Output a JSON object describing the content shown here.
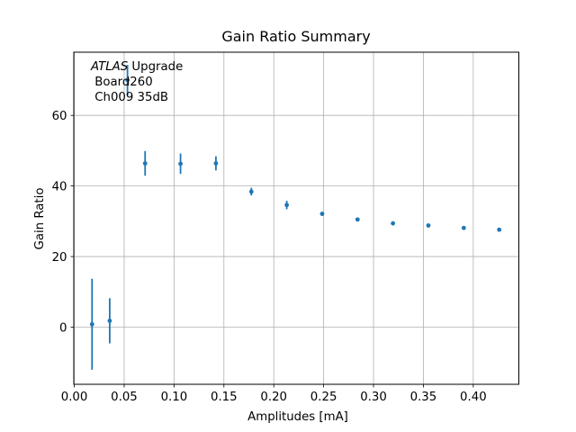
{
  "colors": {
    "marker": "#1f77b4",
    "grid": "#b0b0b0",
    "spine": "#000000",
    "text": "#000000",
    "background": "#ffffff"
  },
  "chart_data": {
    "type": "scatter",
    "title": "Gain Ratio Summary",
    "xlabel": "Amplitudes [mA]",
    "ylabel": "Gain Ratio",
    "grid": true,
    "legend": null,
    "annotation": {
      "italic": "ATLAS",
      "after_italic": " Upgrade",
      "line2": " Board260",
      "line3": " Ch009 35dB"
    },
    "xlim": [
      -0.0005,
      0.4457
    ],
    "ylim": [
      -16.2,
      77.9
    ],
    "xticks": {
      "values": [
        0.0,
        0.05,
        0.1,
        0.15,
        0.2,
        0.25,
        0.3,
        0.35,
        0.4
      ],
      "labels": [
        "0.00",
        "0.05",
        "0.10",
        "0.15",
        "0.20",
        "0.25",
        "0.30",
        "0.35",
        "0.40"
      ]
    },
    "yticks": {
      "values": [
        0,
        20,
        40,
        60
      ],
      "labels": [
        "0",
        "20",
        "40",
        "60"
      ]
    },
    "series": [
      {
        "name": "gain-ratio",
        "marker": "point",
        "error_bars": "y",
        "points": [
          {
            "x": 0.0178,
            "y": 0.8,
            "yerr": 12.9
          },
          {
            "x": 0.0355,
            "y": 1.8,
            "yerr": 6.4
          },
          {
            "x": 0.0533,
            "y": 70.0,
            "yerr": 4.3
          },
          {
            "x": 0.071,
            "y": 46.4,
            "yerr": 3.5
          },
          {
            "x": 0.1065,
            "y": 46.3,
            "yerr": 2.9
          },
          {
            "x": 0.142,
            "y": 46.4,
            "yerr": 2.0
          },
          {
            "x": 0.1775,
            "y": 38.4,
            "yerr": 1.1
          },
          {
            "x": 0.213,
            "y": 34.6,
            "yerr": 1.2
          },
          {
            "x": 0.2485,
            "y": 32.1,
            "yerr": 0.6
          },
          {
            "x": 0.284,
            "y": 30.5,
            "yerr": 0.5
          },
          {
            "x": 0.3195,
            "y": 29.4,
            "yerr": 0.5
          },
          {
            "x": 0.355,
            "y": 28.8,
            "yerr": 0.4
          },
          {
            "x": 0.3905,
            "y": 28.1,
            "yerr": 0.4
          },
          {
            "x": 0.426,
            "y": 27.6,
            "yerr": 0.4
          }
        ]
      }
    ]
  }
}
